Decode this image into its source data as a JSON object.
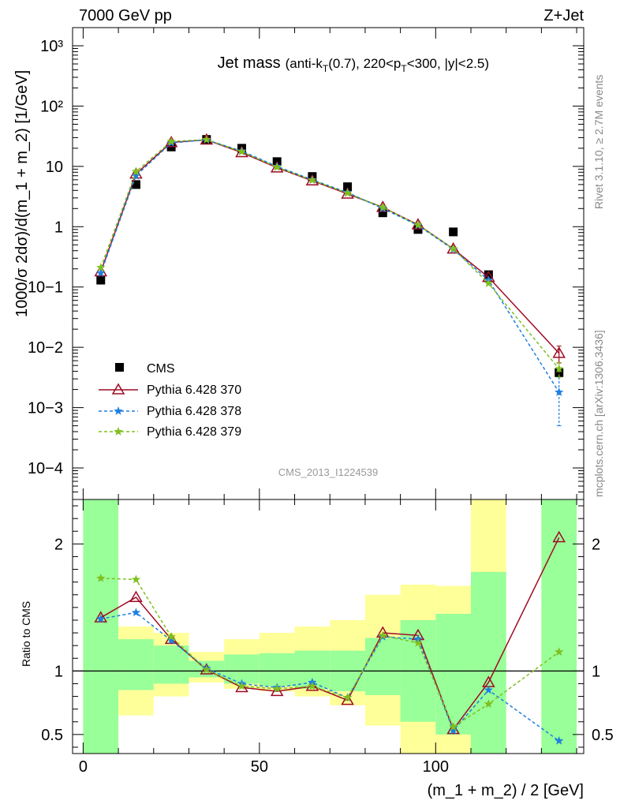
{
  "header": {
    "left": "7000 GeV pp",
    "right": "Z+Jet",
    "title_main": "Jet mass",
    "title_detail_pre": "(anti-k",
    "title_detail_sub1": "T",
    "title_detail_mid": "(0.7), 220<p",
    "title_detail_sub2": "T",
    "title_detail_post": "<300, |y|<2.5)",
    "analysis_id": "CMS_2013_I1224539",
    "side_rivet": "Rivet 3.1.10, ≥ 2.7M events",
    "side_mcplots": "mcplots.cern.ch [arXiv:1306.3436]"
  },
  "colors": {
    "cms": "#000000",
    "p370": "#9e0b25",
    "p378": "#1f7fe0",
    "p379": "#7fbf1f",
    "band_green": "#99ff99",
    "band_yellow": "#ffff99"
  },
  "chart_data": [
    {
      "type": "scatter",
      "panel": "main",
      "ylabel": "1000/σ 2dσ)/d(m_1 + m_2) [1/GeV]",
      "yscale": "log",
      "ylim": [
        3e-05,
        2000
      ],
      "xlim": [
        -3,
        142
      ],
      "x": [
        5,
        15,
        25,
        35,
        45,
        55,
        65,
        75,
        85,
        95,
        105,
        115,
        135
      ],
      "y_tick_labels": [
        "10−4",
        "10−3",
        "10−2",
        "10−1",
        "1",
        "10",
        "10²",
        "10³"
      ],
      "legend_position": "middle-left",
      "series": [
        {
          "name": "CMS",
          "key": "cms",
          "values": [
            0.13,
            5.0,
            21.0,
            28.0,
            20.0,
            12.0,
            6.8,
            4.6,
            1.7,
            0.9,
            0.82,
            0.16,
            0.0038
          ]
        },
        {
          "name": "Pythia 6.428 370",
          "key": "p370",
          "values": [
            0.18,
            7.5,
            25.0,
            27.5,
            17.0,
            9.5,
            5.8,
            3.5,
            2.1,
            1.08,
            0.43,
            0.145,
            0.008
          ],
          "err_last": 0.0025
        },
        {
          "name": "Pythia 6.428 378",
          "key": "p378",
          "values": [
            0.17,
            7.0,
            24.5,
            27.5,
            18.0,
            10.0,
            6.0,
            3.7,
            2.0,
            1.05,
            0.42,
            0.13,
            0.0018
          ],
          "err_last": [
            0.0005,
            0.0032
          ]
        },
        {
          "name": "Pythia 6.428 379",
          "key": "p379",
          "values": [
            0.21,
            8.2,
            26.0,
            27.8,
            17.5,
            9.7,
            5.9,
            3.6,
            2.1,
            1.07,
            0.43,
            0.115,
            0.0044
          ],
          "err_last": 0.0012
        }
      ]
    },
    {
      "type": "line",
      "panel": "ratio",
      "ylabel": "Ratio to CMS",
      "xlabel": "(m_1 + m_2) / 2 [GeV]",
      "ylim": [
        0.35,
        2.35
      ],
      "xlim": [
        -3,
        142
      ],
      "x_ticks": [
        0,
        50,
        100
      ],
      "y_ticks": [
        0.5,
        1,
        2
      ],
      "x": [
        5,
        15,
        25,
        35,
        45,
        55,
        65,
        75,
        85,
        95,
        105,
        115,
        135
      ],
      "bands": [
        {
          "x0": 0,
          "x1": 10,
          "y_lo": 0.35,
          "y_hi": 2.35,
          "g_lo": 0.35,
          "g_hi": 2.35
        },
        {
          "x0": 10,
          "x1": 20,
          "y_lo": 0.65,
          "y_hi": 1.35,
          "g_lo": 0.85,
          "g_hi": 1.25
        },
        {
          "x0": 20,
          "x1": 30,
          "y_lo": 0.8,
          "y_hi": 1.3,
          "g_lo": 0.9,
          "g_hi": 1.2
        },
        {
          "x0": 30,
          "x1": 40,
          "y_lo": 0.91,
          "y_hi": 1.15,
          "g_lo": 0.95,
          "g_hi": 1.08
        },
        {
          "x0": 40,
          "x1": 50,
          "y_lo": 0.86,
          "y_hi": 1.25,
          "g_lo": 0.9,
          "g_hi": 1.13
        },
        {
          "x0": 50,
          "x1": 60,
          "y_lo": 0.84,
          "y_hi": 1.3,
          "g_lo": 0.88,
          "g_hi": 1.14
        },
        {
          "x0": 60,
          "x1": 70,
          "y_lo": 0.8,
          "y_hi": 1.35,
          "g_lo": 0.86,
          "g_hi": 1.16
        },
        {
          "x0": 70,
          "x1": 80,
          "y_lo": 0.73,
          "y_hi": 1.4,
          "g_lo": 0.84,
          "g_hi": 1.16
        },
        {
          "x0": 80,
          "x1": 90,
          "y_lo": 0.57,
          "y_hi": 1.6,
          "g_lo": 0.81,
          "g_hi": 1.26
        },
        {
          "x0": 90,
          "x1": 100,
          "y_lo": 0.35,
          "y_hi": 1.68,
          "g_lo": 0.6,
          "g_hi": 1.4
        },
        {
          "x0": 100,
          "x1": 110,
          "y_lo": 0.35,
          "y_hi": 1.67,
          "g_lo": 0.5,
          "g_hi": 1.45
        },
        {
          "x0": 110,
          "x1": 120,
          "y_lo": 0.35,
          "y_hi": 2.35,
          "g_lo": 0.35,
          "g_hi": 1.78
        },
        {
          "x0": 130,
          "x1": 140,
          "y_lo": 0.35,
          "y_hi": 2.35,
          "g_lo": 0.35,
          "g_hi": 2.35
        }
      ],
      "series": [
        {
          "name": "Pythia 6.428 370",
          "key": "p370",
          "values": [
            1.42,
            1.58,
            1.25,
            1.01,
            0.87,
            0.84,
            0.88,
            0.77,
            1.3,
            1.28,
            0.54,
            0.91,
            2.05
          ]
        },
        {
          "name": "Pythia 6.428 378",
          "key": "p378",
          "values": [
            1.41,
            1.46,
            1.24,
            1.02,
            0.9,
            0.87,
            0.91,
            0.79,
            1.27,
            1.25,
            0.53,
            0.85,
            0.45
          ]
        },
        {
          "name": "Pythia 6.428 379",
          "key": "p379",
          "values": [
            1.73,
            1.72,
            1.27,
            1.01,
            0.88,
            0.86,
            0.88,
            0.79,
            1.28,
            1.22,
            0.56,
            0.74,
            1.15
          ]
        }
      ]
    }
  ]
}
